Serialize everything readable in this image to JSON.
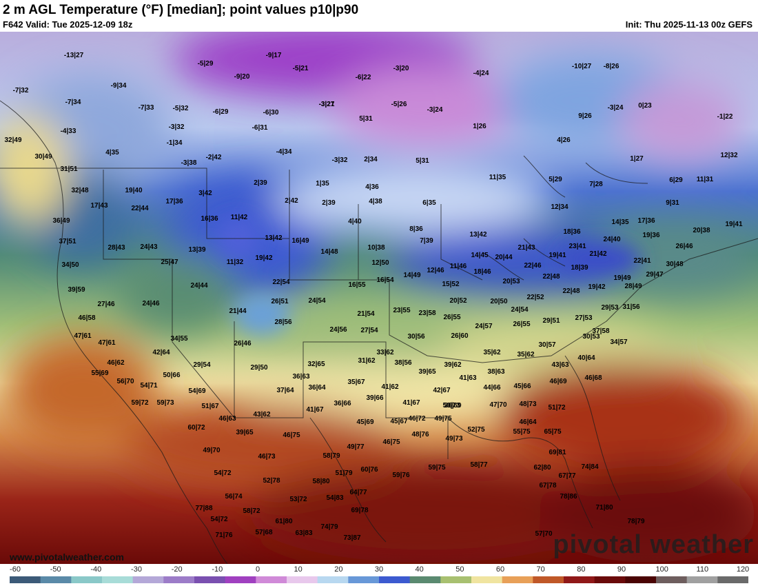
{
  "header": {
    "title": "2 m AGL Temperature (°F) [median]; point values p10|p90",
    "valid": "F642 Valid: Tue 2025-12-09 18z",
    "init": "Init: Thu 2025-11-13 00z GEFS"
  },
  "footer": {
    "site": "www.pivotalweather.com",
    "watermark": "pivotal weather"
  },
  "colorbar": {
    "ticks": [
      "-60",
      "-50",
      "-40",
      "-30",
      "-20",
      "-10",
      "0",
      "10",
      "20",
      "30",
      "40",
      "50",
      "60",
      "70",
      "80",
      "90",
      "100",
      "110",
      "120"
    ],
    "colors": [
      "#3c5a78",
      "#5a8aa8",
      "#8ac8c8",
      "#a8dcd8",
      "#b4a8d8",
      "#9c7cc8",
      "#7a50b0",
      "#a040c0",
      "#d08ad8",
      "#e8c8ec",
      "#b8d8f0",
      "#6898d8",
      "#3c5ad0",
      "#5a8a70",
      "#a8c070",
      "#f0e4a0",
      "#e8a058",
      "#c05828",
      "#901818",
      "#6a0a0a",
      "#4a0404",
      "#6e5e5e",
      "#a0a0a0",
      "#6a6a6a"
    ]
  },
  "point_values": [
    "-13|27",
    "-5|29",
    "-9|17",
    "-5|21",
    "-3|20",
    "-9|20",
    "-4|24",
    "-10|27",
    "-8|26",
    "-7|32",
    "-9|34",
    "-7|34",
    "-3|21",
    "-6|22",
    "-5|26",
    "-3|24",
    "-3|24",
    "0|23",
    "-7|33",
    "-5|32",
    "-6|29",
    "-6|30",
    "-3|27",
    "5|31",
    "1|26",
    "9|26",
    "-1|22",
    "-4|33",
    "-3|32",
    "-6|31",
    "-4|34",
    "4|26",
    "32|49",
    "4|35",
    "-1|34",
    "-2|42",
    "-3|38",
    "-3|32",
    "2|34",
    "5|31",
    "1|27",
    "12|32",
    "30|49",
    "31|51",
    "11|35",
    "5|29",
    "7|28",
    "6|29",
    "11|31",
    "19|40",
    "3|42",
    "2|39",
    "1|35",
    "4|36",
    "32|48",
    "17|43",
    "22|44",
    "17|36",
    "2|42",
    "2|39",
    "4|38",
    "6|35",
    "12|34",
    "9|31",
    "36|49",
    "16|36",
    "11|42",
    "4|40",
    "14|35",
    "17|36",
    "20|38",
    "19|41",
    "37|51",
    "28|43",
    "24|43",
    "13|39",
    "13|42",
    "16|49",
    "8|36",
    "13|42",
    "18|36",
    "19|36",
    "26|46",
    "34|50",
    "25|47",
    "11|32",
    "19|42",
    "10|38",
    "7|39",
    "21|43",
    "23|41",
    "24|40",
    "14|48",
    "12|50",
    "14|45",
    "20|44",
    "19|41",
    "21|42",
    "22|41",
    "30|48",
    "39|59",
    "24|44",
    "22|54",
    "16|55",
    "16|54",
    "14|49",
    "12|46",
    "11|46",
    "18|46",
    "22|46",
    "22|48",
    "18|39",
    "19|49",
    "29|47",
    "27|46",
    "24|46",
    "26|51",
    "24|54",
    "15|52",
    "20|52",
    "20|50",
    "20|53",
    "22|52",
    "22|48",
    "19|42",
    "28|49",
    "46|58",
    "21|44",
    "28|56",
    "21|54",
    "23|55",
    "23|58",
    "26|55",
    "24|54",
    "26|55",
    "29|51",
    "27|53",
    "29|53",
    "31|56",
    "47|61",
    "24|56",
    "27|54",
    "24|57",
    "30|53",
    "37|58",
    "34|55",
    "26|46",
    "30|56",
    "26|60",
    "30|57",
    "34|57",
    "47|61",
    "42|64",
    "33|62",
    "35|62",
    "35|62",
    "40|64",
    "46|62",
    "29|54",
    "31|62",
    "38|56",
    "39|62",
    "43|63",
    "55|69",
    "50|66",
    "32|65",
    "29|50",
    "39|65",
    "41|63",
    "38|63",
    "46|69",
    "46|68",
    "56|70",
    "54|71",
    "36|63",
    "35|67",
    "41|62",
    "42|67",
    "44|66",
    "45|66",
    "59|72",
    "59|73",
    "54|69",
    "37|64",
    "36|64",
    "39|66",
    "50|73",
    "51|67",
    "41|67",
    "36|66",
    "41|67",
    "36|69",
    "47|70",
    "48|73",
    "51|72",
    "60|72",
    "46|63",
    "43|62",
    "45|69",
    "45|67",
    "46|72",
    "49|75",
    "46|64",
    "39|65",
    "46|75",
    "46|75",
    "48|76",
    "49|73",
    "52|75",
    "55|75",
    "65|75",
    "49|70",
    "46|73",
    "49|77",
    "58|79",
    "69|81",
    "54|72",
    "52|78",
    "58|80",
    "51|79",
    "60|76",
    "59|76",
    "59|75",
    "58|77",
    "62|80",
    "67|77",
    "74|84",
    "56|74",
    "53|72",
    "54|83",
    "64|77",
    "67|78",
    "78|86",
    "77|88",
    "58|72",
    "61|80",
    "69|78",
    "71|80",
    "54|72",
    "74|79",
    "78|79",
    "71|76",
    "57|68",
    "63|83",
    "73|87",
    "57|70"
  ]
}
